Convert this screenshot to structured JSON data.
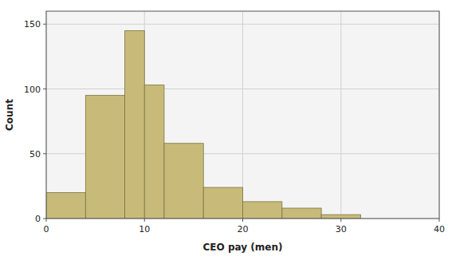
{
  "chart_data": {
    "type": "histogram",
    "bins": [
      0,
      4,
      8,
      10,
      12,
      16,
      20,
      24,
      28,
      32,
      36,
      40
    ],
    "values": [
      20,
      95,
      145,
      103,
      58,
      24,
      13,
      8,
      3,
      0,
      0
    ],
    "color": "#c8bb7a",
    "xlabel": "CEO pay (men)",
    "ylabel": "Count",
    "xlim": [
      0,
      40
    ],
    "ylim": [
      0,
      160
    ],
    "xticks": [
      0,
      10,
      20,
      30,
      40
    ],
    "yticks": [
      0,
      50,
      100,
      150
    ],
    "grid": true
  }
}
